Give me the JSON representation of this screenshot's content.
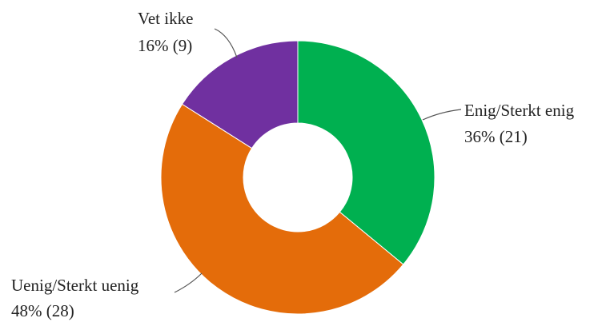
{
  "chart_data": {
    "type": "pie",
    "donut": true,
    "title": "",
    "slices": [
      {
        "label": "Enig/Sterkt enig",
        "value_text": "36% (21)",
        "percent": 36,
        "count": 21,
        "color": "#00B050"
      },
      {
        "label": "Uenig/Sterkt uenig",
        "value_text": "48% (28)",
        "percent": 48,
        "count": 28,
        "color": "#E46C0A"
      },
      {
        "label": "Vet ikke",
        "value_text": "16% (9)",
        "percent": 16,
        "count": 9,
        "color": "#7030A0"
      }
    ]
  }
}
